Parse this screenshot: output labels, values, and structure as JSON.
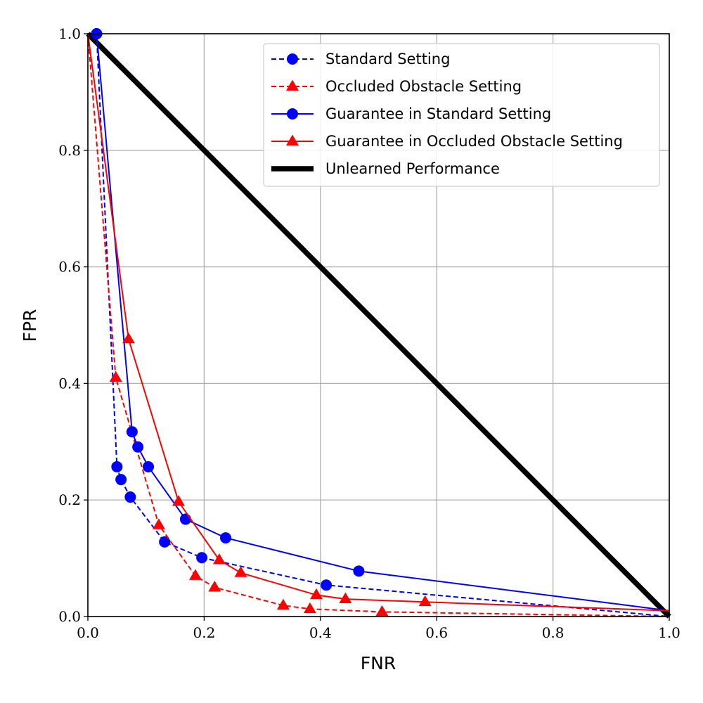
{
  "chart_data": {
    "type": "line",
    "title": "",
    "xlabel": "FNR",
    "ylabel": "FPR",
    "xlim": [
      0.0,
      1.0
    ],
    "ylim": [
      0.0,
      1.0
    ],
    "xticks": [
      "0.0",
      "0.2",
      "0.4",
      "0.6",
      "0.8",
      "1.0"
    ],
    "yticks": [
      "0.0",
      "0.2",
      "0.4",
      "0.6",
      "0.8",
      "1.0"
    ],
    "grid": true,
    "legend_position": "top-right",
    "series": [
      {
        "name": "Standard Setting",
        "color": "#0000ff",
        "line_style": "dashed",
        "marker": "circle",
        "x": [
          0.0,
          0.015,
          0.05,
          0.057,
          0.073,
          0.132,
          0.196,
          0.41,
          1.0
        ],
        "y": [
          1.0,
          1.0,
          0.257,
          0.235,
          0.205,
          0.128,
          0.101,
          0.054,
          0.0
        ]
      },
      {
        "name": "Occluded Obstacle Setting",
        "color": "#ff0000",
        "line_style": "dashed",
        "marker": "triangle",
        "x": [
          0.0,
          0.048,
          0.122,
          0.185,
          0.218,
          0.336,
          0.382,
          0.506,
          1.0
        ],
        "y": [
          1.0,
          0.41,
          0.157,
          0.07,
          0.05,
          0.019,
          0.013,
          0.008,
          0.0
        ]
      },
      {
        "name": "Guarantee in Standard Setting",
        "color": "#0000ff",
        "line_style": "solid",
        "marker": "circle",
        "x": [
          0.0,
          0.015,
          0.076,
          0.086,
          0.104,
          0.168,
          0.237,
          0.466,
          1.0
        ],
        "y": [
          1.0,
          1.0,
          0.317,
          0.291,
          0.257,
          0.167,
          0.135,
          0.078,
          0.01
        ]
      },
      {
        "name": "Guarantee in Occluded Obstacle Setting",
        "color": "#ff0000",
        "line_style": "solid",
        "marker": "triangle",
        "x": [
          0.0,
          0.07,
          0.156,
          0.226,
          0.263,
          0.393,
          0.443,
          0.58,
          1.0
        ],
        "y": [
          1.0,
          0.476,
          0.197,
          0.097,
          0.075,
          0.037,
          0.03,
          0.025,
          0.01
        ]
      },
      {
        "name": "Unlearned Performance",
        "color": "#000000",
        "line_style": "solid",
        "line_weight": "thick",
        "marker": "none",
        "x": [
          0.0,
          1.0
        ],
        "y": [
          1.0,
          0.0
        ]
      }
    ]
  }
}
